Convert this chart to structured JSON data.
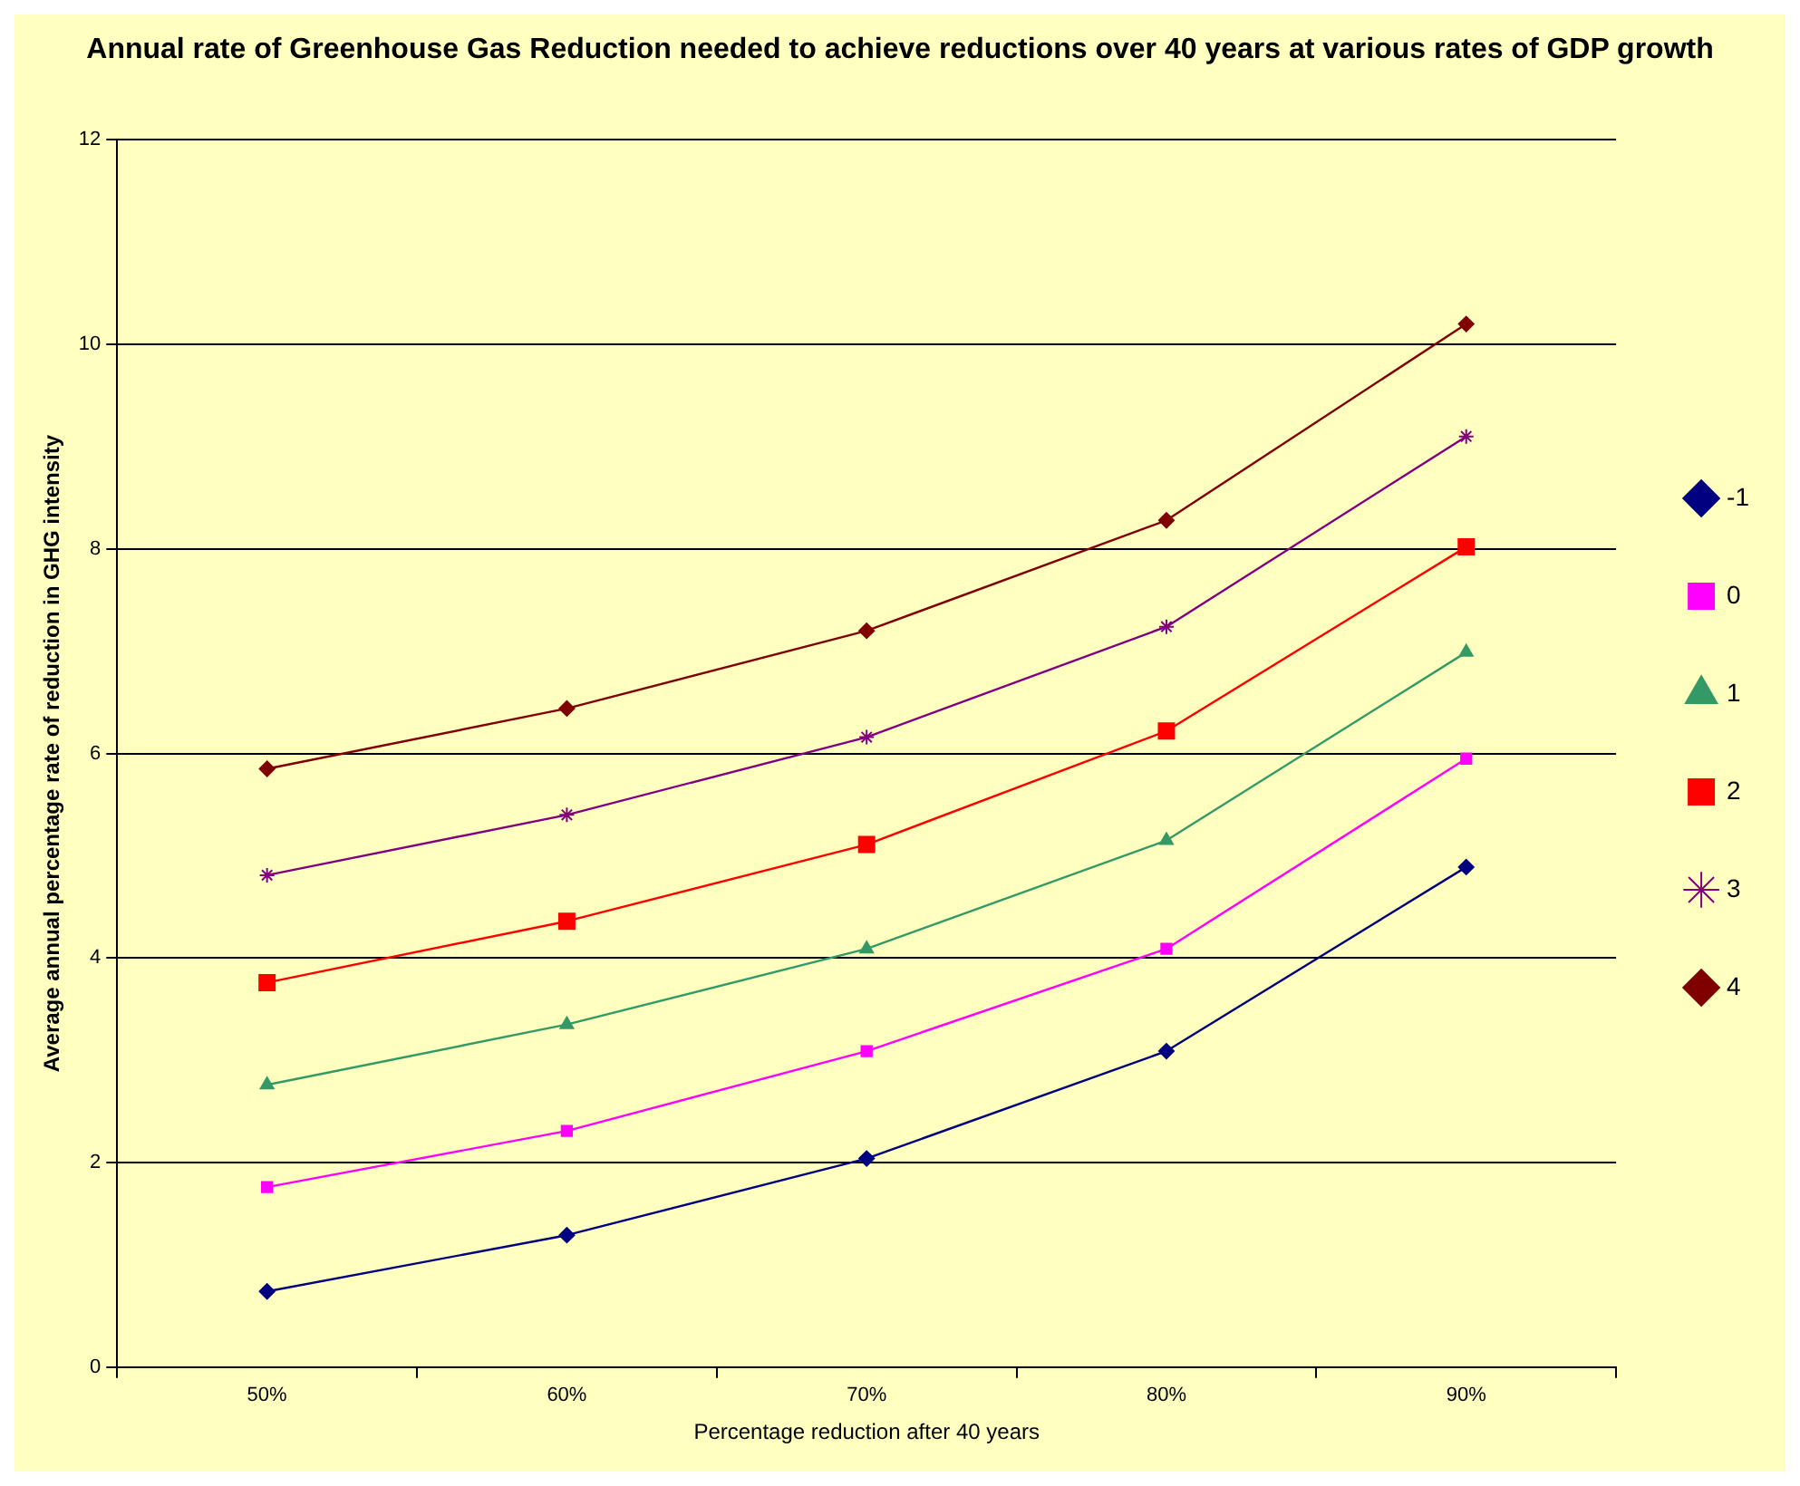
{
  "chart_data": {
    "type": "line",
    "title": "Annual rate of Greenhouse Gas Reduction needed to achieve reductions over 40 years at various rates of GDP growth",
    "xlabel": "Percentage reduction after 40 years",
    "ylabel": "Average annual percentage rate of reduction in GHG intensity",
    "categories": [
      "50%",
      "60%",
      "70%",
      "80%",
      "90%"
    ],
    "series": [
      {
        "name": "-1",
        "color": "#000080",
        "marker": "diamond",
        "values": [
          0.74,
          1.29,
          2.04,
          3.09,
          4.89
        ]
      },
      {
        "name": "0",
        "color": "#ff00ff",
        "marker": "square",
        "values": [
          1.76,
          2.31,
          3.09,
          4.09,
          5.95
        ]
      },
      {
        "name": "1",
        "color": "#339966",
        "marker": "triangle",
        "values": [
          2.76,
          3.35,
          4.09,
          5.15,
          6.99
        ]
      },
      {
        "name": "2",
        "color": "#ff0000",
        "marker": "square",
        "values": [
          3.76,
          4.36,
          5.11,
          6.22,
          8.02
        ]
      },
      {
        "name": "3",
        "color": "#800080",
        "marker": "cross",
        "values": [
          4.81,
          5.4,
          6.16,
          7.24,
          9.1
        ]
      },
      {
        "name": "4",
        "color": "#800000",
        "marker": "diamond",
        "values": [
          5.85,
          6.44,
          7.2,
          8.28,
          10.2
        ]
      }
    ],
    "ylim": [
      0,
      12
    ],
    "yticks": [
      0,
      2,
      4,
      6,
      8,
      10,
      12
    ],
    "grid": "y",
    "legend": "right",
    "line_style": "solid"
  }
}
